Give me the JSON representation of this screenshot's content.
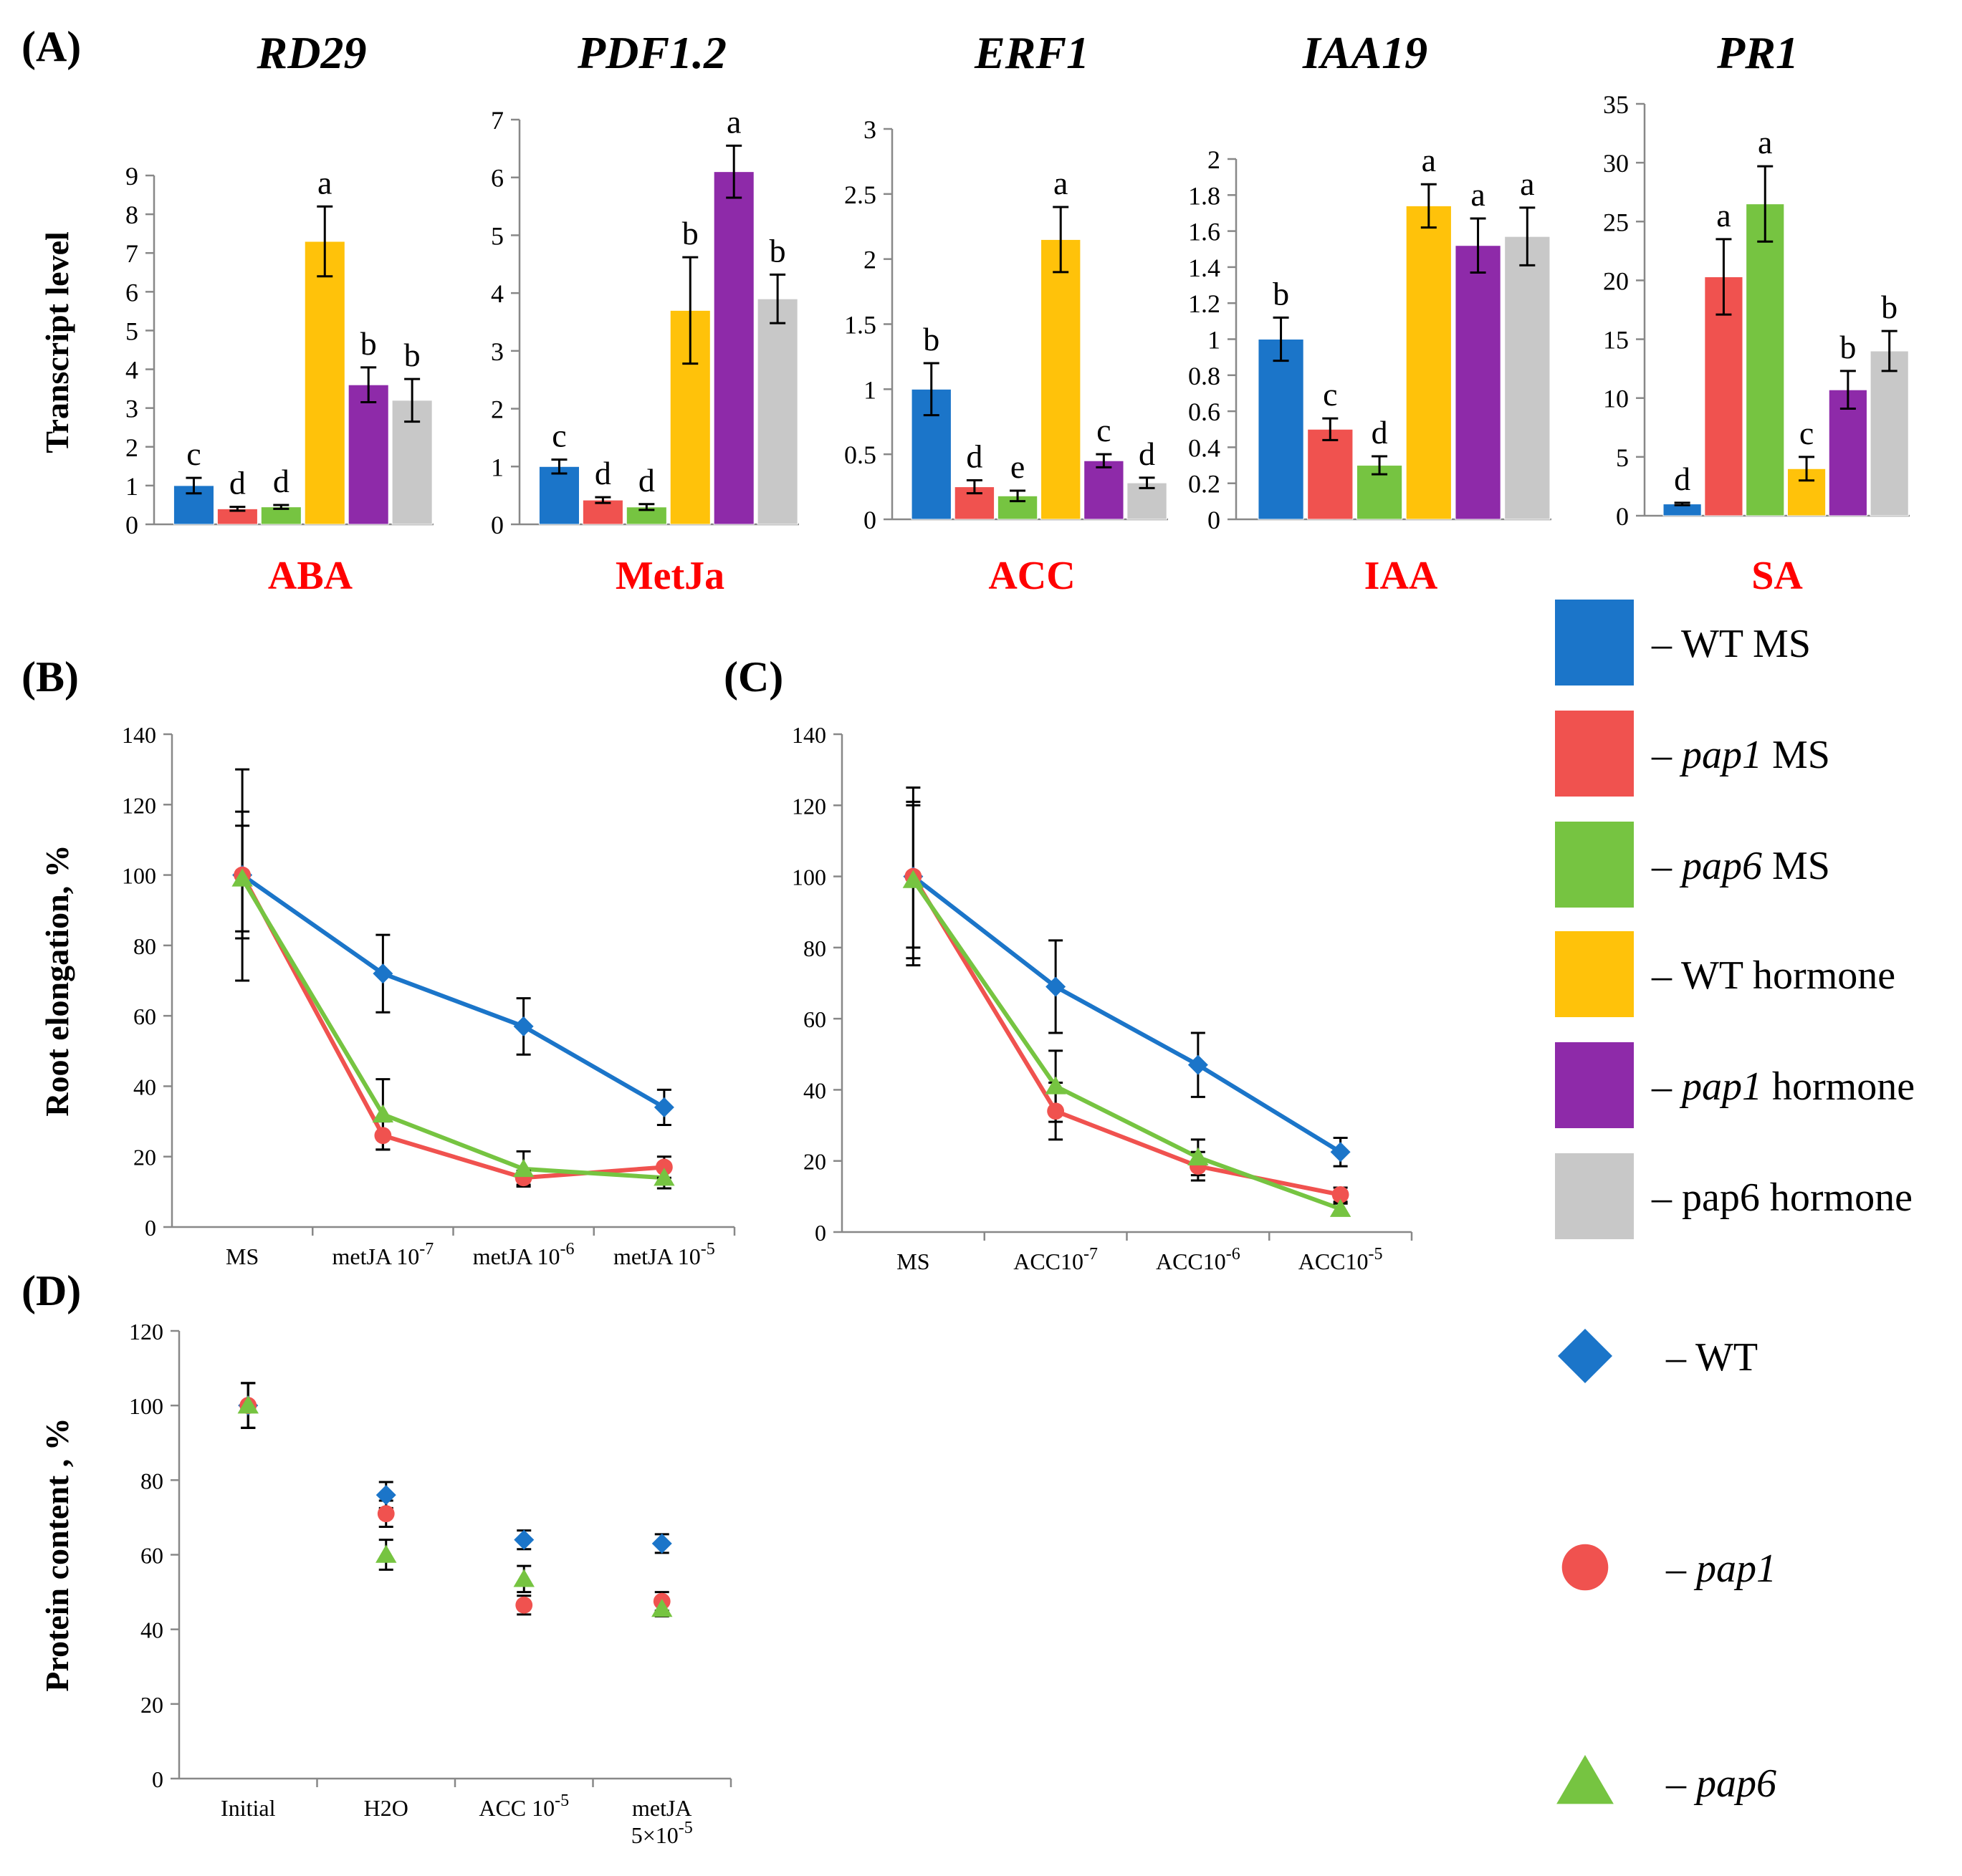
{
  "figure": {
    "panel_labels": [
      "(A)",
      "(B)",
      "(C)",
      "(D)"
    ],
    "colors": {
      "wt_ms": "#1b75c9",
      "pap1_ms": "#f0524f",
      "pap6_ms": "#76c441",
      "wt_hormone": "#ffc20a",
      "pap1_hormone": "#8e2aa9",
      "pap6_hormone": "#c8c8c8",
      "wt": "#1b75c9",
      "pap1": "#f0524f",
      "pap6": "#76c441"
    }
  },
  "legend_bars": [
    {
      "prefix": "– ",
      "italic": "",
      "suffix": "WT MS",
      "color": "#1b75c9"
    },
    {
      "prefix": "– ",
      "italic": "pap1",
      "suffix": " MS",
      "color": "#f0524f"
    },
    {
      "prefix": "– ",
      "italic": "pap6",
      "suffix": " MS",
      "color": "#76c441"
    },
    {
      "prefix": "– ",
      "italic": "",
      "suffix": "WT hormone",
      "color": "#ffc20a"
    },
    {
      "prefix": "– ",
      "italic": "pap1",
      "suffix": " hormone",
      "color": "#8e2aa9"
    },
    {
      "prefix": "– ",
      "italic": "",
      "suffix": "pap6 hormone",
      "color": "#c8c8c8"
    }
  ],
  "legend_markers": [
    {
      "prefix": "– ",
      "label": "WT",
      "italic": false,
      "marker": "diamond",
      "color": "#1b75c9"
    },
    {
      "prefix": "– ",
      "label": "pap1",
      "italic": true,
      "marker": "circle",
      "color": "#f0524f"
    },
    {
      "prefix": "– ",
      "label": "pap6",
      "italic": true,
      "marker": "triangle",
      "color": "#76c441"
    }
  ],
  "chart_data": [
    {
      "panel": "(A)",
      "type": "bar",
      "ylabel": "Transcript level",
      "series_names": [
        "WT MS",
        "pap1 MS",
        "pap6 MS",
        "WT hormone",
        "pap1 hormone",
        "pap6 hormone"
      ],
      "subcharts": [
        {
          "gene": "RD29",
          "hormone": "ABA",
          "ylim": [
            0,
            9
          ],
          "ticks": [
            "0",
            "1",
            "2",
            "3",
            "4",
            "5",
            "6",
            "7",
            "8",
            "9"
          ],
          "values": [
            1.0,
            0.4,
            0.45,
            7.3,
            3.6,
            3.2
          ],
          "errors": [
            0.2,
            0.05,
            0.05,
            0.9,
            0.45,
            0.55
          ],
          "letters": [
            "c",
            "d",
            "d",
            "a",
            "b",
            "b"
          ]
        },
        {
          "gene": "PDF1.2",
          "hormone": "MetJa",
          "ylim": [
            0,
            7
          ],
          "ticks": [
            "0",
            "1",
            "2",
            "3",
            "4",
            "5",
            "6",
            "7"
          ],
          "values": [
            1.0,
            0.42,
            0.3,
            3.7,
            6.1,
            3.9
          ],
          "errors": [
            0.12,
            0.05,
            0.05,
            0.92,
            0.45,
            0.42
          ],
          "letters": [
            "c",
            "d",
            "d",
            "b",
            "a",
            "b"
          ]
        },
        {
          "gene": "ERF1",
          "hormone": "ACC",
          "ylim": [
            0,
            3
          ],
          "ticks": [
            "0",
            "0.5",
            "1",
            "1.5",
            "2",
            "2.5",
            "3"
          ],
          "values": [
            1.0,
            0.25,
            0.18,
            2.15,
            0.45,
            0.28
          ],
          "errors": [
            0.2,
            0.05,
            0.04,
            0.25,
            0.05,
            0.04
          ],
          "letters": [
            "b",
            "d",
            "e",
            "a",
            "c",
            "d"
          ]
        },
        {
          "gene": "IAA19",
          "hormone": "IAA",
          "ylim": [
            0,
            2
          ],
          "ticks": [
            "0",
            "0.2",
            "0.4",
            "0.6",
            "0.8",
            "1",
            "1.2",
            "1.4",
            "1.6",
            "1.8",
            "2"
          ],
          "values": [
            1.0,
            0.5,
            0.3,
            1.74,
            1.52,
            1.57
          ],
          "errors": [
            0.12,
            0.06,
            0.05,
            0.12,
            0.15,
            0.16
          ],
          "letters": [
            "b",
            "c",
            "d",
            "a",
            "a",
            "a"
          ]
        },
        {
          "gene": "PR1",
          "hormone": "SA",
          "ylim": [
            0,
            35
          ],
          "ticks": [
            "0",
            "5",
            "10",
            "15",
            "20",
            "25",
            "30",
            "35"
          ],
          "values": [
            1.0,
            20.3,
            26.5,
            4.0,
            10.7,
            14.0
          ],
          "errors": [
            0.1,
            3.2,
            3.2,
            1.0,
            1.6,
            1.7
          ],
          "letters": [
            "d",
            "a",
            "a",
            "c",
            "b",
            "b"
          ]
        }
      ]
    },
    {
      "panel": "(B)",
      "type": "line",
      "ylabel": "Root elongation, %",
      "ylim": [
        0,
        140
      ],
      "yticks": [
        "0",
        "20",
        "40",
        "60",
        "80",
        "100",
        "120",
        "140"
      ],
      "categories": [
        {
          "base": "MS",
          "exp": ""
        },
        {
          "base": "metJA 10",
          "exp": "-7"
        },
        {
          "base": "metJA 10",
          "exp": "-6"
        },
        {
          "base": "metJA 10",
          "exp": "-5"
        }
      ],
      "series": [
        {
          "name": "WT",
          "values": [
            100,
            72,
            57,
            34
          ],
          "errors": [
            30,
            11,
            8,
            5
          ]
        },
        {
          "name": "pap1",
          "values": [
            100,
            26,
            14,
            17
          ],
          "errors": [
            18,
            4,
            2,
            3
          ]
        },
        {
          "name": "pap6",
          "values": [
            99,
            32,
            16.5,
            14
          ],
          "errors": [
            15,
            10,
            5,
            3
          ]
        }
      ]
    },
    {
      "panel": "(C)",
      "type": "line",
      "ylabel": "",
      "ylim": [
        0,
        140
      ],
      "yticks": [
        "0",
        "20",
        "40",
        "60",
        "80",
        "100",
        "120",
        "140"
      ],
      "categories": [
        {
          "base": "MS",
          "exp": ""
        },
        {
          "base": "ACC10",
          "exp": "-7"
        },
        {
          "base": "ACC10",
          "exp": "-6"
        },
        {
          "base": "ACC10",
          "exp": "-5"
        }
      ],
      "series": [
        {
          "name": "WT",
          "values": [
            100,
            69,
            47,
            22.5
          ],
          "errors": [
            25,
            13,
            9,
            4
          ]
        },
        {
          "name": "pap1",
          "values": [
            100,
            34,
            18.5,
            10.5
          ],
          "errors": [
            20,
            8,
            4,
            2
          ]
        },
        {
          "name": "pap6",
          "values": [
            99,
            41,
            21,
            6.5
          ],
          "errors": [
            22,
            10,
            5,
            1.5
          ]
        }
      ]
    },
    {
      "panel": "(D)",
      "type": "scatter",
      "ylabel": "Protein content , %",
      "ylim": [
        0,
        120
      ],
      "yticks": [
        "0",
        "20",
        "40",
        "60",
        "80",
        "100",
        "120"
      ],
      "categories": [
        {
          "base": "Initial",
          "exp": "",
          "line2": ""
        },
        {
          "base": "H2O",
          "exp": "",
          "line2": ""
        },
        {
          "base": "ACC 10",
          "exp": "-5",
          "line2": ""
        },
        {
          "base": "metJA",
          "exp": "",
          "line2": "5×10",
          "line2_exp": "-5"
        }
      ],
      "series": [
        {
          "name": "WT",
          "values": [
            100,
            76,
            64,
            63
          ],
          "errors": [
            6,
            3.5,
            2.5,
            2.5
          ]
        },
        {
          "name": "pap1",
          "values": [
            100,
            71,
            46.5,
            47.5
          ],
          "errors": [
            6,
            3.5,
            2.5,
            2.5
          ]
        },
        {
          "name": "pap6",
          "values": [
            100,
            60,
            53.5,
            45.5
          ],
          "errors": [
            6,
            4,
            3.5,
            2
          ]
        }
      ]
    }
  ]
}
